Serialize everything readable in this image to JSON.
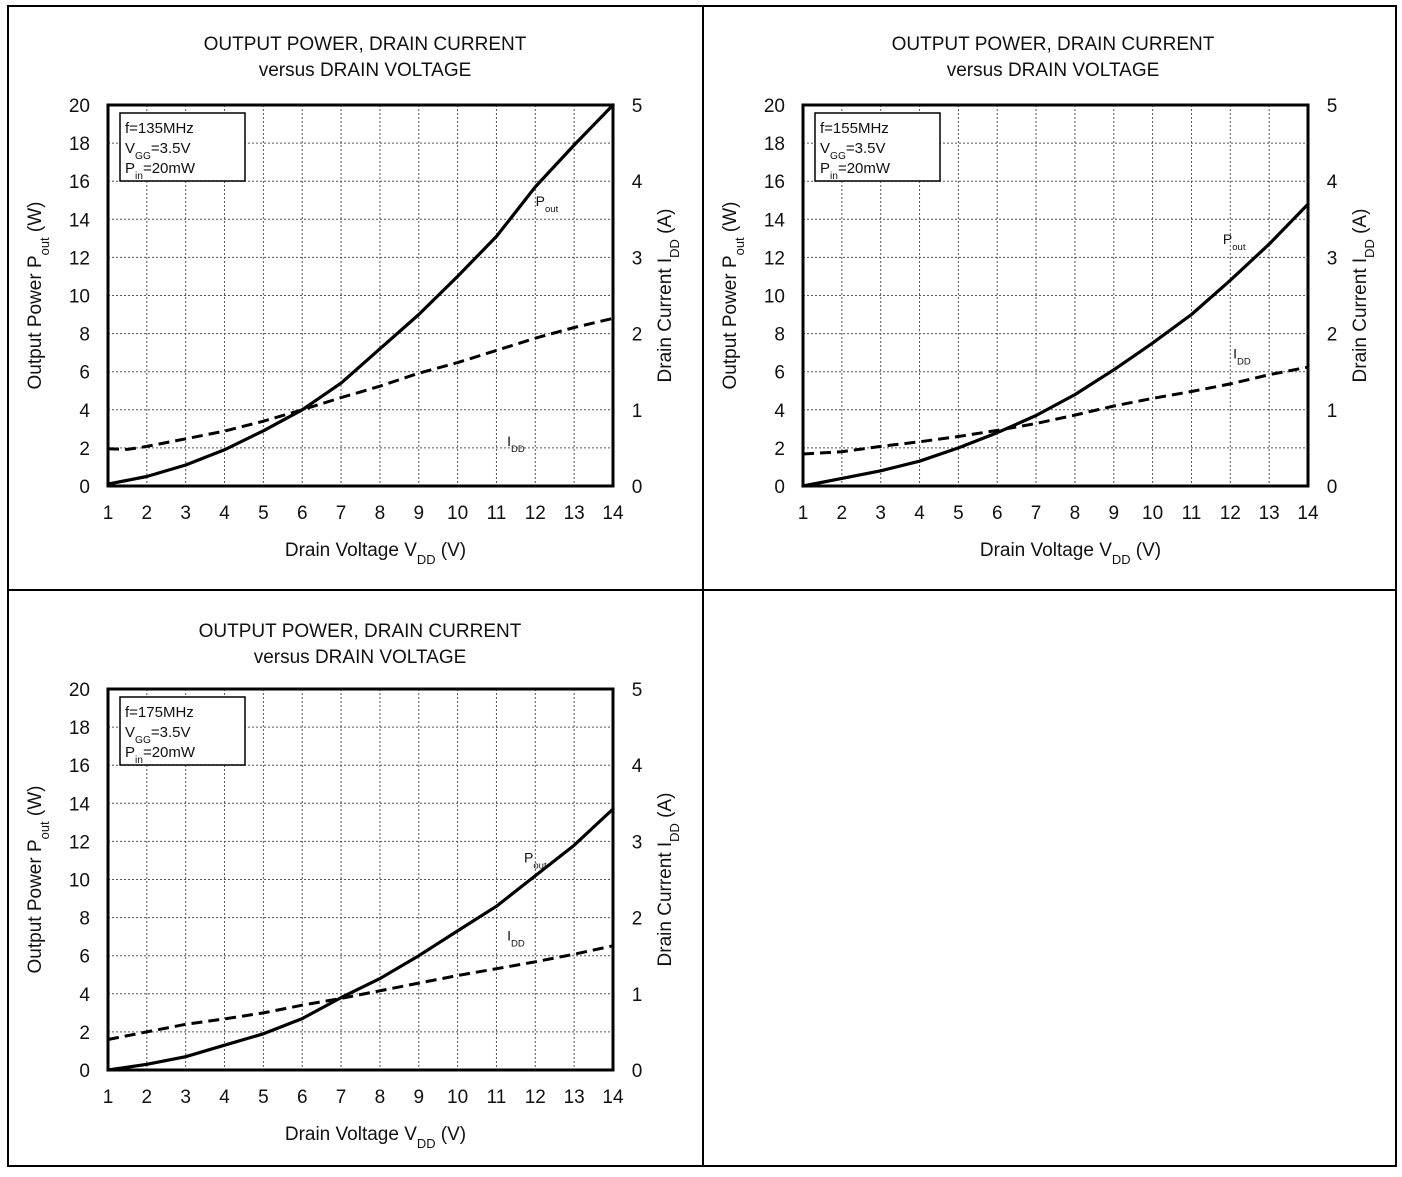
{
  "colors": {
    "background": "#ffffff",
    "ink": "#000000",
    "grid": "#555555"
  },
  "chart_data": [
    {
      "type": "line",
      "title": [
        "OUTPUT  POWER, DRAIN CURRENT",
        "versus  DRAIN VOLTAGE"
      ],
      "conditions": {
        "freq": "f=135MHz",
        "vgg": {
          "main": "V",
          "sub": "GG",
          "rest": "=3.5V"
        },
        "pin": {
          "main": "P",
          "sub": "in",
          "rest": "=20mW"
        }
      },
      "xlabel": {
        "main": "Drain Voltage V",
        "sub": "DD",
        "rest": " (V)"
      },
      "ylabel_left": {
        "main": "Output  Power P",
        "sub": "out",
        "rest": " (W)"
      },
      "ylabel_right": {
        "main": "Drain Current I",
        "sub": "DD",
        "rest": " (A)"
      },
      "xlim": [
        1,
        14
      ],
      "ylim_left": [
        0,
        20
      ],
      "ylim_right": [
        0,
        5
      ],
      "xticks": [
        1,
        2,
        3,
        4,
        5,
        6,
        7,
        8,
        9,
        10,
        11,
        12,
        13,
        14
      ],
      "yticks_left": [
        0,
        2,
        4,
        6,
        8,
        10,
        12,
        14,
        16,
        18,
        20
      ],
      "yticks_right": [
        0,
        1,
        2,
        3,
        4,
        5
      ],
      "grid": true,
      "series": [
        {
          "name": {
            "main": "P",
            "sub": "out"
          },
          "axis": "left",
          "style": "solid",
          "label_at": [
            12.3,
            14.7
          ],
          "x": [
            1,
            2,
            3,
            4,
            5,
            6,
            7,
            8,
            9,
            10,
            11,
            12,
            13,
            14
          ],
          "values": [
            0.1,
            0.5,
            1.1,
            1.9,
            2.9,
            4.0,
            5.4,
            7.2,
            9.0,
            11.0,
            13.1,
            15.7,
            17.9,
            20.0
          ]
        },
        {
          "name": {
            "main": "I",
            "sub": "DD"
          },
          "axis": "right",
          "style": "dashed",
          "label_at": [
            11.5,
            2.1
          ],
          "x": [
            1,
            1.5,
            2,
            3,
            4,
            5,
            6,
            7,
            8,
            9,
            10,
            11,
            12,
            13,
            14
          ],
          "values": [
            0.49,
            0.48,
            0.52,
            0.62,
            0.72,
            0.85,
            1.0,
            1.16,
            1.31,
            1.48,
            1.62,
            1.78,
            1.94,
            2.08,
            2.2
          ]
        }
      ]
    },
    {
      "type": "line",
      "title": [
        "OUTPUT  POWER, DRAIN CURRENT",
        "versus  DRAIN VOLTAGE"
      ],
      "conditions": {
        "freq": "f=155MHz",
        "vgg": {
          "main": "V",
          "sub": "GG",
          "rest": "=3.5V"
        },
        "pin": {
          "main": "P",
          "sub": "in",
          "rest": "=20mW"
        }
      },
      "xlabel": {
        "main": "Drain Voltage V",
        "sub": "DD",
        "rest": " (V)"
      },
      "ylabel_left": {
        "main": "Output  Power P",
        "sub": "out",
        "rest": " (W)"
      },
      "ylabel_right": {
        "main": "Drain Current I",
        "sub": "DD",
        "rest": " (A)"
      },
      "xlim": [
        1,
        14
      ],
      "ylim_left": [
        0,
        20
      ],
      "ylim_right": [
        0,
        5
      ],
      "xticks": [
        1,
        2,
        3,
        4,
        5,
        6,
        7,
        8,
        9,
        10,
        11,
        12,
        13,
        14
      ],
      "yticks_left": [
        0,
        2,
        4,
        6,
        8,
        10,
        12,
        14,
        16,
        18,
        20
      ],
      "yticks_right": [
        0,
        1,
        2,
        3,
        4,
        5
      ],
      "grid": true,
      "series": [
        {
          "name": {
            "main": "P",
            "sub": "out"
          },
          "axis": "left",
          "style": "solid",
          "label_at": [
            12.1,
            12.7
          ],
          "x": [
            1,
            2,
            3,
            4,
            5,
            6,
            7,
            8,
            9,
            10,
            11,
            12,
            13,
            14
          ],
          "values": [
            0.0,
            0.4,
            0.8,
            1.3,
            2.0,
            2.8,
            3.7,
            4.8,
            6.1,
            7.5,
            9.0,
            10.8,
            12.7,
            14.8
          ]
        },
        {
          "name": {
            "main": "I",
            "sub": "DD"
          },
          "axis": "right",
          "style": "dashed",
          "label_at": [
            12.3,
            6.7
          ],
          "x": [
            1,
            2,
            3,
            4,
            5,
            6,
            7,
            8,
            9,
            10,
            11,
            12,
            13,
            14
          ],
          "values": [
            0.42,
            0.45,
            0.52,
            0.58,
            0.65,
            0.73,
            0.82,
            0.93,
            1.05,
            1.15,
            1.24,
            1.34,
            1.46,
            1.56
          ]
        }
      ]
    },
    {
      "type": "line",
      "title": [
        "OUTPUT  POWER, DRAIN CURRENT",
        "versus  DRAIN VOLTAGE"
      ],
      "conditions": {
        "freq": "f=175MHz",
        "vgg": {
          "main": "V",
          "sub": "GG",
          "rest": "=3.5V"
        },
        "pin": {
          "main": "P",
          "sub": "in",
          "rest": "=20mW"
        }
      },
      "xlabel": {
        "main": "Drain Voltage V",
        "sub": "DD",
        "rest": " (V)"
      },
      "ylabel_left": {
        "main": "Output Power P",
        "sub": "out",
        "rest": " (W)"
      },
      "ylabel_right": {
        "main": "Drain Current I",
        "sub": "DD",
        "rest": " (A)"
      },
      "xlim": [
        1,
        14
      ],
      "ylim_left": [
        0,
        20
      ],
      "ylim_right": [
        0,
        5
      ],
      "xticks": [
        1,
        2,
        3,
        4,
        5,
        6,
        7,
        8,
        9,
        10,
        11,
        12,
        13,
        14
      ],
      "yticks_left": [
        0,
        2,
        4,
        6,
        8,
        10,
        12,
        14,
        16,
        18,
        20
      ],
      "yticks_right": [
        0,
        1,
        2,
        3,
        4,
        5
      ],
      "grid": true,
      "series": [
        {
          "name": {
            "main": "P",
            "sub": "out"
          },
          "axis": "left",
          "style": "solid",
          "label_at": [
            12.0,
            10.9
          ],
          "x": [
            1,
            2,
            3,
            4,
            5,
            6,
            7,
            8,
            9,
            10,
            11,
            12,
            13,
            14
          ],
          "values": [
            0.0,
            0.3,
            0.7,
            1.3,
            1.9,
            2.7,
            3.8,
            4.8,
            6.0,
            7.3,
            8.6,
            10.2,
            11.8,
            13.7
          ]
        },
        {
          "name": {
            "main": "I",
            "sub": "DD"
          },
          "axis": "right",
          "style": "dashed",
          "label_at": [
            11.5,
            6.8
          ],
          "x": [
            1,
            2,
            3,
            4,
            5,
            6,
            7,
            8,
            9,
            10,
            11,
            12,
            13,
            14
          ],
          "values": [
            0.4,
            0.5,
            0.6,
            0.67,
            0.75,
            0.85,
            0.94,
            1.04,
            1.14,
            1.24,
            1.33,
            1.42,
            1.52,
            1.63
          ]
        }
      ]
    }
  ]
}
